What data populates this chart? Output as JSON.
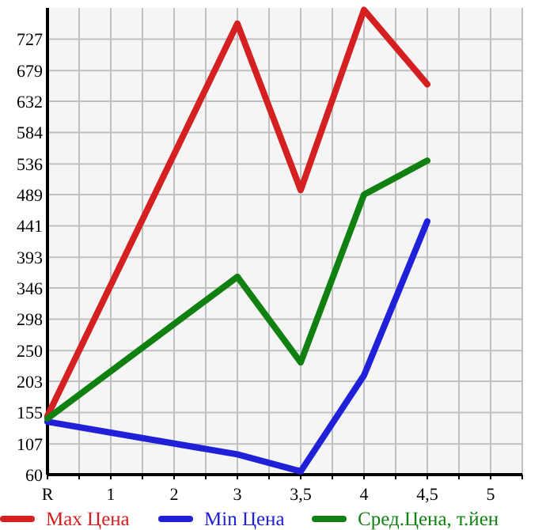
{
  "chart_data": {
    "type": "line",
    "categories": [
      "R",
      "1",
      "2",
      "3",
      "3,5",
      "4",
      "4,5",
      "5"
    ],
    "series": [
      {
        "name": "Max Цена",
        "color": "#d42020",
        "values": [
          150,
          null,
          null,
          751,
          496,
          772,
          658,
          null
        ]
      },
      {
        "name": "Min Цена",
        "color": "#2020d8",
        "values": [
          141,
          null,
          null,
          91,
          65,
          212,
          448,
          null
        ]
      },
      {
        "name": "Сред.Цена, т.йен",
        "color": "#108010",
        "values": [
          146,
          null,
          null,
          363,
          232,
          489,
          541,
          null
        ]
      }
    ],
    "ylim": [
      60,
      775
    ],
    "yticks": [
      60,
      107,
      155,
      203,
      250,
      298,
      346,
      393,
      441,
      489,
      536,
      584,
      632,
      679,
      727
    ],
    "grid": true,
    "legend": "bottom",
    "marker": "none",
    "line_style": "solid"
  }
}
